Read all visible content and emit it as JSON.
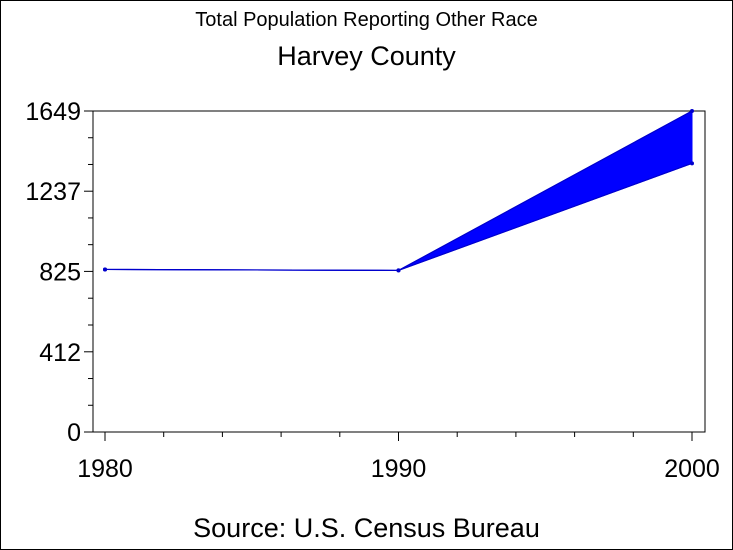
{
  "header": {
    "subtitle": "Total Population Reporting Other Race",
    "title": "Harvey County"
  },
  "footer": {
    "source": "Source: U.S. Census Bureau"
  },
  "chart_data": {
    "type": "area",
    "x": [
      1980,
      1990,
      2000
    ],
    "series": [
      {
        "values": [
          835,
          830,
          1649
        ]
      },
      {
        "values": [
          835,
          830,
          1380
        ]
      }
    ],
    "band_color": "#0000ff",
    "line_color": "#0000cc",
    "xticks": [
      1980,
      1990,
      2000
    ],
    "xlabels": [
      "1980",
      "1990",
      "2000"
    ],
    "yticks": [
      0,
      412,
      825,
      1237,
      1649
    ],
    "ylabels": [
      "0",
      "412",
      "825",
      "1237",
      "1649"
    ],
    "xlim": [
      1980,
      2000
    ],
    "ylim": [
      0,
      1649
    ],
    "grid": false
  }
}
